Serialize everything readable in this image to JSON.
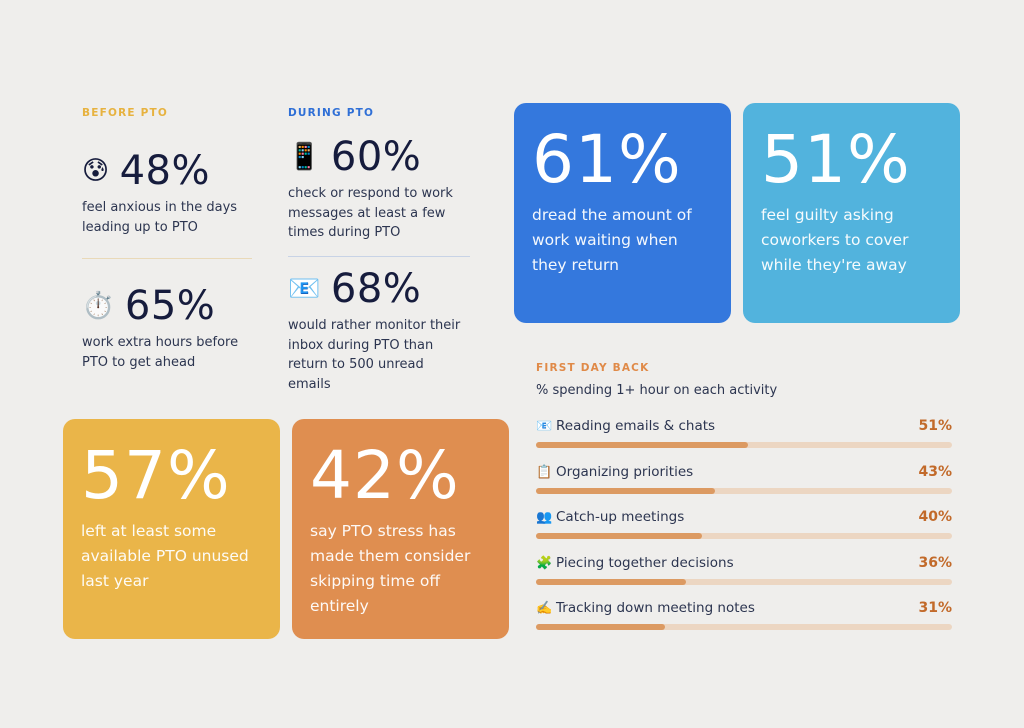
{
  "colors": {
    "background": "#efeeec",
    "before_label": "#e7b23f",
    "during_label": "#2f6fd6",
    "first_day_label": "#e08a48",
    "card_blue": "#3478dd",
    "card_lightblue": "#52b3dd",
    "card_yellow": "#eab549",
    "card_orange": "#df8e50",
    "bar_fill": "#dc9a62",
    "bar_track": "#ecd6c2",
    "pct_text": "#c26a2a"
  },
  "before": {
    "label": "BEFORE PTO",
    "stats": [
      {
        "icon": "anxious-face-icon",
        "glyph": "😰",
        "value": "48%",
        "desc": "feel anxious in the days leading up to PTO"
      },
      {
        "icon": "stopwatch-icon",
        "glyph": "⏱️",
        "value": "65%",
        "desc": "work extra hours before PTO to get ahead"
      }
    ]
  },
  "during": {
    "label": "DURING PTO",
    "stats": [
      {
        "icon": "phone-icon",
        "glyph": "📱",
        "value": "60%",
        "desc": "check or respond to work messages at least a few times during PTO"
      },
      {
        "icon": "email-icon",
        "glyph": "📧",
        "value": "68%",
        "desc": "would rather monitor their inbox during PTO than return to 500 unread emails"
      }
    ]
  },
  "cards": [
    {
      "value": "61%",
      "desc": "dread the amount of work waiting when they return",
      "color": "#3478dd"
    },
    {
      "value": "51%",
      "desc": "feel guilty asking coworkers to cover while they're away",
      "color": "#52b3dd"
    },
    {
      "value": "57%",
      "desc": "left at least some available PTO unused last year",
      "color": "#eab549"
    },
    {
      "value": "42%",
      "desc": "say PTO stress has made them consider skipping time off entirely",
      "color": "#df8e50"
    }
  ],
  "chart_data": {
    "type": "bar",
    "title": "FIRST DAY BACK",
    "subtitle": "% spending 1+ hour on each activity",
    "categories": [
      "Reading emails & chats",
      "Organizing priorities",
      "Catch-up meetings",
      "Piecing together decisions",
      "Tracking down meeting notes"
    ],
    "icons": [
      "email-icon",
      "clipboard-icon",
      "people-icon",
      "puzzle-icon",
      "writing-hand-icon"
    ],
    "glyphs": [
      "📧",
      "📋",
      "👥",
      "🧩",
      "✍️"
    ],
    "values": [
      51,
      43,
      40,
      36,
      31
    ],
    "value_labels": [
      "51%",
      "43%",
      "40%",
      "36%",
      "31%"
    ],
    "ylim": [
      0,
      100
    ],
    "orientation": "horizontal",
    "grid": false
  }
}
